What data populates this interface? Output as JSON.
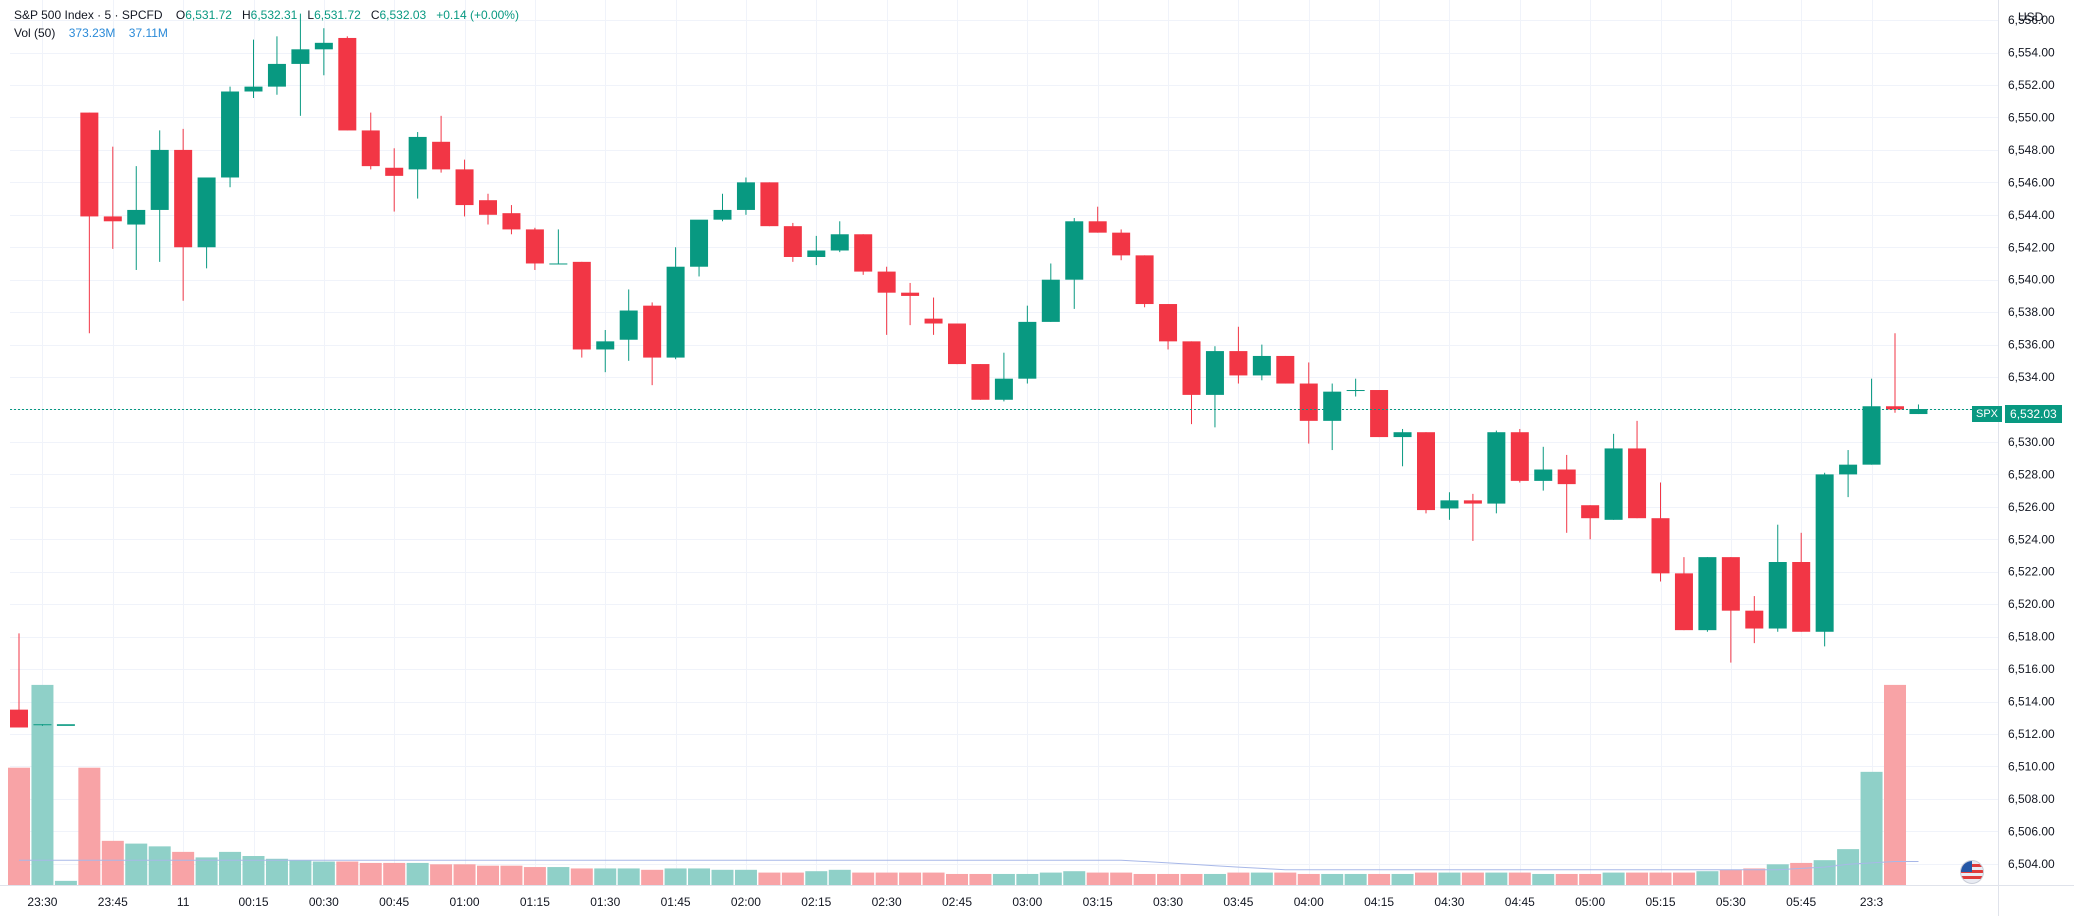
{
  "header": {
    "title": "S&P 500 Index · 5 · SPCFD",
    "open_label": "O",
    "open": "6,531.72",
    "high_label": "H",
    "high": "6,532.31",
    "low_label": "L",
    "low": "6,531.72",
    "close_label": "C",
    "close": "6,532.03",
    "change": "+0.14 (+0.00%)",
    "vol_label": "Vol (50)",
    "vol_value": "373.23M",
    "vol_ma": "37.11M"
  },
  "axis": {
    "currency": "USD"
  },
  "price_tag": {
    "symbol": "SPX",
    "price": "6,532.03"
  },
  "colors": {
    "up": "#089981",
    "down": "#f23645",
    "vol_up": "#8fd0c8",
    "vol_down": "#f8a3a6",
    "grid": "#f0f3fa",
    "ma": "#a8b8e8"
  },
  "chart_data": {
    "type": "candlestick",
    "ylim": [
      6503,
      6556.5
    ],
    "yticks": [
      "6,504.00",
      "6,506.00",
      "6,508.00",
      "6,510.00",
      "6,512.00",
      "6,514.00",
      "6,516.00",
      "6,518.00",
      "6,520.00",
      "6,522.00",
      "6,524.00",
      "6,526.00",
      "6,528.00",
      "6,530.00",
      "6,532.00",
      "6,534.00",
      "6,536.00",
      "6,538.00",
      "6,540.00",
      "6,542.00",
      "6,544.00",
      "6,546.00",
      "6,548.00",
      "6,550.00",
      "6,552.00",
      "6,554.00",
      "6,556.00"
    ],
    "x_labels": [
      {
        "i": 1,
        "t": "23:30"
      },
      {
        "i": 4,
        "t": "23:45"
      },
      {
        "i": 7,
        "t": "11"
      },
      {
        "i": 10,
        "t": "00:15"
      },
      {
        "i": 13,
        "t": "00:30"
      },
      {
        "i": 16,
        "t": "00:45"
      },
      {
        "i": 19,
        "t": "01:00"
      },
      {
        "i": 22,
        "t": "01:15"
      },
      {
        "i": 25,
        "t": "01:30"
      },
      {
        "i": 28,
        "t": "01:45"
      },
      {
        "i": 31,
        "t": "02:00"
      },
      {
        "i": 34,
        "t": "02:15"
      },
      {
        "i": 37,
        "t": "02:30"
      },
      {
        "i": 40,
        "t": "02:45"
      },
      {
        "i": 43,
        "t": "03:00"
      },
      {
        "i": 46,
        "t": "03:15"
      },
      {
        "i": 49,
        "t": "03:30"
      },
      {
        "i": 52,
        "t": "03:45"
      },
      {
        "i": 55,
        "t": "04:00"
      },
      {
        "i": 58,
        "t": "04:15"
      },
      {
        "i": 61,
        "t": "04:30"
      },
      {
        "i": 64,
        "t": "04:45"
      },
      {
        "i": 67,
        "t": "05:00"
      },
      {
        "i": 70,
        "t": "05:15"
      },
      {
        "i": 73,
        "t": "05:30"
      },
      {
        "i": 76,
        "t": "05:45"
      },
      {
        "i": 79,
        "t": "23:3"
      }
    ],
    "last_price": 6532.03,
    "candles": [
      {
        "o": 6513.5,
        "h": 6518.2,
        "l": 6512.4,
        "c": 6512.4,
        "v": 8.5
      },
      {
        "o": 6512.6,
        "h": 6512.6,
        "l": 6512.5,
        "c": 6512.6,
        "v": 14.5
      },
      {
        "o": 6512.5,
        "h": 6512.5,
        "l": 6512.5,
        "c": 6512.6,
        "v": 0.3
      },
      {
        "o": 6550.3,
        "h": 6550.3,
        "l": 6536.7,
        "c": 6543.9,
        "v": 8.5
      },
      {
        "o": 6543.9,
        "h": 6548.2,
        "l": 6541.9,
        "c": 6543.6,
        "v": 3.2
      },
      {
        "o": 6543.4,
        "h": 6547.0,
        "l": 6540.6,
        "c": 6544.3,
        "v": 3.0
      },
      {
        "o": 6544.3,
        "h": 6549.2,
        "l": 6541.1,
        "c": 6548.0,
        "v": 2.8
      },
      {
        "o": 6548.0,
        "h": 6549.3,
        "l": 6538.7,
        "c": 6542.0,
        "v": 2.4
      },
      {
        "o": 6542.0,
        "h": 6546.3,
        "l": 6540.7,
        "c": 6546.3,
        "v": 2.0
      },
      {
        "o": 6546.3,
        "h": 6551.9,
        "l": 6545.7,
        "c": 6551.6,
        "v": 2.4
      },
      {
        "o": 6551.6,
        "h": 6554.8,
        "l": 6551.2,
        "c": 6551.9,
        "v": 2.1
      },
      {
        "o": 6551.9,
        "h": 6555.0,
        "l": 6551.4,
        "c": 6553.3,
        "v": 1.9
      },
      {
        "o": 6553.3,
        "h": 6556.4,
        "l": 6550.1,
        "c": 6554.2,
        "v": 1.8
      },
      {
        "o": 6554.2,
        "h": 6555.5,
        "l": 6552.6,
        "c": 6554.6,
        "v": 1.7
      },
      {
        "o": 6554.9,
        "h": 6555.0,
        "l": 6549.2,
        "c": 6549.2,
        "v": 1.7
      },
      {
        "o": 6549.2,
        "h": 6550.3,
        "l": 6546.8,
        "c": 6547.0,
        "v": 1.6
      },
      {
        "o": 6546.9,
        "h": 6548.1,
        "l": 6544.2,
        "c": 6546.4,
        "v": 1.6
      },
      {
        "o": 6546.8,
        "h": 6549.1,
        "l": 6545.0,
        "c": 6548.8,
        "v": 1.6
      },
      {
        "o": 6548.5,
        "h": 6550.1,
        "l": 6546.6,
        "c": 6546.8,
        "v": 1.5
      },
      {
        "o": 6546.8,
        "h": 6547.4,
        "l": 6543.9,
        "c": 6544.6,
        "v": 1.5
      },
      {
        "o": 6544.9,
        "h": 6545.3,
        "l": 6543.4,
        "c": 6544.0,
        "v": 1.4
      },
      {
        "o": 6544.1,
        "h": 6544.6,
        "l": 6542.8,
        "c": 6543.1,
        "v": 1.4
      },
      {
        "o": 6543.1,
        "h": 6543.2,
        "l": 6540.6,
        "c": 6541.0,
        "v": 1.3
      },
      {
        "o": 6541.0,
        "h": 6543.1,
        "l": 6541.0,
        "c": 6541.0,
        "v": 1.3
      },
      {
        "o": 6541.1,
        "h": 6541.1,
        "l": 6535.2,
        "c": 6535.7,
        "v": 1.2
      },
      {
        "o": 6535.7,
        "h": 6536.9,
        "l": 6534.3,
        "c": 6536.2,
        "v": 1.2
      },
      {
        "o": 6536.3,
        "h": 6539.4,
        "l": 6535.0,
        "c": 6538.1,
        "v": 1.2
      },
      {
        "o": 6538.4,
        "h": 6538.6,
        "l": 6533.5,
        "c": 6535.2,
        "v": 1.1
      },
      {
        "o": 6535.2,
        "h": 6542.0,
        "l": 6535.1,
        "c": 6540.8,
        "v": 1.2
      },
      {
        "o": 6540.8,
        "h": 6543.6,
        "l": 6540.2,
        "c": 6543.7,
        "v": 1.2
      },
      {
        "o": 6543.7,
        "h": 6545.3,
        "l": 6543.6,
        "c": 6544.3,
        "v": 1.1
      },
      {
        "o": 6544.3,
        "h": 6546.3,
        "l": 6544.0,
        "c": 6546.0,
        "v": 1.1
      },
      {
        "o": 6546.0,
        "h": 6546.0,
        "l": 6543.3,
        "c": 6543.3,
        "v": 0.9
      },
      {
        "o": 6543.3,
        "h": 6543.5,
        "l": 6541.1,
        "c": 6541.4,
        "v": 0.9
      },
      {
        "o": 6541.4,
        "h": 6542.7,
        "l": 6540.9,
        "c": 6541.8,
        "v": 1.0
      },
      {
        "o": 6541.8,
        "h": 6543.6,
        "l": 6541.7,
        "c": 6542.8,
        "v": 1.1
      },
      {
        "o": 6542.8,
        "h": 6542.8,
        "l": 6540.3,
        "c": 6540.5,
        "v": 0.9
      },
      {
        "o": 6540.5,
        "h": 6540.8,
        "l": 6536.6,
        "c": 6539.2,
        "v": 0.9
      },
      {
        "o": 6539.2,
        "h": 6539.8,
        "l": 6537.2,
        "c": 6539.0,
        "v": 0.9
      },
      {
        "o": 6537.6,
        "h": 6538.9,
        "l": 6536.6,
        "c": 6537.3,
        "v": 0.9
      },
      {
        "o": 6537.3,
        "h": 6537.3,
        "l": 6534.8,
        "c": 6534.8,
        "v": 0.8
      },
      {
        "o": 6534.8,
        "h": 6534.8,
        "l": 6532.6,
        "c": 6532.6,
        "v": 0.8
      },
      {
        "o": 6532.6,
        "h": 6535.5,
        "l": 6532.5,
        "c": 6533.9,
        "v": 0.8
      },
      {
        "o": 6533.9,
        "h": 6538.4,
        "l": 6533.6,
        "c": 6537.4,
        "v": 0.8
      },
      {
        "o": 6537.4,
        "h": 6541.0,
        "l": 6537.4,
        "c": 6540.0,
        "v": 0.9
      },
      {
        "o": 6540.0,
        "h": 6543.8,
        "l": 6538.2,
        "c": 6543.6,
        "v": 1.0
      },
      {
        "o": 6543.6,
        "h": 6544.5,
        "l": 6542.9,
        "c": 6542.9,
        "v": 0.9
      },
      {
        "o": 6542.9,
        "h": 6543.1,
        "l": 6541.2,
        "c": 6541.5,
        "v": 0.9
      },
      {
        "o": 6541.5,
        "h": 6541.5,
        "l": 6538.3,
        "c": 6538.5,
        "v": 0.8
      },
      {
        "o": 6538.5,
        "h": 6538.5,
        "l": 6535.7,
        "c": 6536.2,
        "v": 0.8
      },
      {
        "o": 6536.2,
        "h": 6536.2,
        "l": 6531.1,
        "c": 6532.9,
        "v": 0.8
      },
      {
        "o": 6532.9,
        "h": 6535.9,
        "l": 6530.9,
        "c": 6535.6,
        "v": 0.8
      },
      {
        "o": 6535.6,
        "h": 6537.1,
        "l": 6533.6,
        "c": 6534.1,
        "v": 0.9
      },
      {
        "o": 6534.1,
        "h": 6536.0,
        "l": 6533.8,
        "c": 6535.3,
        "v": 0.9
      },
      {
        "o": 6535.3,
        "h": 6535.3,
        "l": 6533.6,
        "c": 6533.6,
        "v": 0.9
      },
      {
        "o": 6533.6,
        "h": 6534.9,
        "l": 6529.9,
        "c": 6531.3,
        "v": 0.8
      },
      {
        "o": 6531.3,
        "h": 6533.6,
        "l": 6529.5,
        "c": 6533.1,
        "v": 0.8
      },
      {
        "o": 6533.2,
        "h": 6533.9,
        "l": 6532.8,
        "c": 6533.2,
        "v": 0.8
      },
      {
        "o": 6533.2,
        "h": 6533.2,
        "l": 6530.3,
        "c": 6530.3,
        "v": 0.8
      },
      {
        "o": 6530.3,
        "h": 6530.8,
        "l": 6528.5,
        "c": 6530.6,
        "v": 0.8
      },
      {
        "o": 6530.6,
        "h": 6530.6,
        "l": 6525.6,
        "c": 6525.8,
        "v": 0.9
      },
      {
        "o": 6525.9,
        "h": 6526.9,
        "l": 6525.2,
        "c": 6526.4,
        "v": 0.9
      },
      {
        "o": 6526.4,
        "h": 6526.8,
        "l": 6523.9,
        "c": 6526.2,
        "v": 0.9
      },
      {
        "o": 6526.2,
        "h": 6530.7,
        "l": 6525.6,
        "c": 6530.6,
        "v": 0.9
      },
      {
        "o": 6530.6,
        "h": 6530.8,
        "l": 6527.5,
        "c": 6527.6,
        "v": 0.9
      },
      {
        "o": 6527.6,
        "h": 6529.7,
        "l": 6527.0,
        "c": 6528.3,
        "v": 0.8
      },
      {
        "o": 6528.3,
        "h": 6529.2,
        "l": 6524.4,
        "c": 6527.4,
        "v": 0.8
      },
      {
        "o": 6526.1,
        "h": 6526.1,
        "l": 6524.0,
        "c": 6525.3,
        "v": 0.8
      },
      {
        "o": 6525.2,
        "h": 6530.5,
        "l": 6525.2,
        "c": 6529.6,
        "v": 0.9
      },
      {
        "o": 6529.6,
        "h": 6531.3,
        "l": 6525.3,
        "c": 6525.3,
        "v": 0.9
      },
      {
        "o": 6525.3,
        "h": 6527.5,
        "l": 6521.4,
        "c": 6521.9,
        "v": 0.9
      },
      {
        "o": 6521.9,
        "h": 6522.9,
        "l": 6518.4,
        "c": 6518.4,
        "v": 0.9
      },
      {
        "o": 6518.4,
        "h": 6522.9,
        "l": 6518.3,
        "c": 6522.9,
        "v": 1.0
      },
      {
        "o": 6522.9,
        "h": 6522.9,
        "l": 6516.4,
        "c": 6519.6,
        "v": 1.1
      },
      {
        "o": 6519.6,
        "h": 6520.5,
        "l": 6517.6,
        "c": 6518.5,
        "v": 1.2
      },
      {
        "o": 6518.5,
        "h": 6524.9,
        "l": 6518.3,
        "c": 6522.6,
        "v": 1.5
      },
      {
        "o": 6522.6,
        "h": 6524.4,
        "l": 6518.3,
        "c": 6518.3,
        "v": 1.6
      },
      {
        "o": 6518.3,
        "h": 6528.1,
        "l": 6517.4,
        "c": 6528.0,
        "v": 1.8
      },
      {
        "o": 6528.0,
        "h": 6529.5,
        "l": 6526.6,
        "c": 6528.6,
        "v": 2.6
      },
      {
        "o": 6528.6,
        "h": 6533.9,
        "l": 6528.6,
        "c": 6532.2,
        "v": 8.2
      },
      {
        "o": 6532.2,
        "h": 6536.7,
        "l": 6531.8,
        "c": 6532.0,
        "v": 14.5
      },
      {
        "o": 6531.72,
        "h": 6532.31,
        "l": 6531.72,
        "c": 6532.03,
        "v": 0.0
      }
    ],
    "vol_ma": [
      1.8,
      1.8,
      1.8,
      1.8,
      1.8,
      1.8,
      1.8,
      1.8,
      1.8,
      1.8,
      1.8,
      1.8,
      1.8,
      1.8,
      1.8,
      1.8,
      1.8,
      1.8,
      1.8,
      1.8,
      1.8,
      1.8,
      1.8,
      1.8,
      1.8,
      1.8,
      1.8,
      1.8,
      1.8,
      1.8,
      1.8,
      1.8,
      1.8,
      1.8,
      1.8,
      1.8,
      1.8,
      1.8,
      1.8,
      1.8,
      1.8,
      1.8,
      1.8,
      1.8,
      1.8,
      1.8,
      1.8,
      1.8,
      1.7,
      1.6,
      1.5,
      1.4,
      1.3,
      1.2,
      1.1,
      1.1,
      1.1,
      1.1,
      1.1,
      1.1,
      1.1,
      1.1,
      1.1,
      1.1,
      1.1,
      1.1,
      1.1,
      1.1,
      1.1,
      1.1,
      1.1,
      1.1,
      1.1,
      1.1,
      1.1,
      1.1,
      1.2,
      1.3,
      1.5,
      1.6,
      1.7,
      1.7
    ]
  }
}
